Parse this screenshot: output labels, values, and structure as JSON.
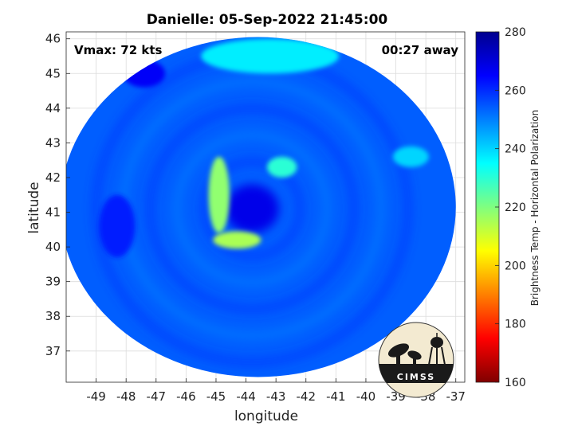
{
  "chart_data": {
    "type": "heatmap",
    "title": "Danielle: 05-Sep-2022 21:45:00",
    "xlabel": "longitude",
    "ylabel": "latitude",
    "xlim": [
      -50,
      -36.7
    ],
    "ylim": [
      36.1,
      46.2
    ],
    "x_ticks": [
      -49,
      -48,
      -47,
      -46,
      -45,
      -44,
      -43,
      -42,
      -41,
      -40,
      -39,
      -38,
      -37
    ],
    "x_tick_labels": [
      "-49",
      "-48",
      "-47",
      "-46",
      "-45",
      "-44",
      "-43",
      "-42",
      "-41",
      "-40",
      "-39",
      "-38",
      "-37"
    ],
    "y_ticks": [
      37,
      38,
      39,
      40,
      41,
      42,
      43,
      44,
      45,
      46
    ],
    "y_tick_labels": [
      "37",
      "38",
      "39",
      "40",
      "41",
      "42",
      "43",
      "44",
      "45",
      "46"
    ],
    "grid": true,
    "annotations": {
      "vmax": "Vmax: 72 kts",
      "away": "00:27 away"
    },
    "colorbar": {
      "label": "Brightness Temp - Horizontal Polarization",
      "range": [
        160,
        280
      ],
      "ticks": [
        160,
        180,
        200,
        220,
        240,
        260,
        280
      ],
      "tick_labels": [
        "160",
        "180",
        "200",
        "220",
        "240",
        "260",
        "280"
      ]
    },
    "swath": {
      "center_lon": -43.6,
      "center_lat": 41.15,
      "radius_lon": 6.6,
      "radius_lat": 4.9,
      "background_temp": 254
    },
    "features": [
      {
        "name": "eye",
        "lon": -43.8,
        "lat": 41.1,
        "rx": 0.9,
        "ry": 0.7,
        "temp": 268
      },
      {
        "name": "rainband-west",
        "lon": -44.9,
        "lat": 41.5,
        "rx": 0.35,
        "ry": 1.1,
        "temp": 218
      },
      {
        "name": "rainband-south",
        "lon": -44.3,
        "lat": 40.2,
        "rx": 0.8,
        "ry": 0.25,
        "temp": 215
      },
      {
        "name": "rainband-north",
        "lon": -42.8,
        "lat": 42.3,
        "rx": 0.5,
        "ry": 0.3,
        "temp": 230
      },
      {
        "name": "cloud-north",
        "lon": -43.2,
        "lat": 45.5,
        "rx": 2.3,
        "ry": 0.5,
        "temp": 237
      },
      {
        "name": "cloud-east",
        "lon": -38.5,
        "lat": 42.6,
        "rx": 0.6,
        "ry": 0.3,
        "temp": 240
      },
      {
        "name": "cold-patch-nw",
        "lon": -47.4,
        "lat": 45.0,
        "rx": 0.7,
        "ry": 0.4,
        "temp": 266
      },
      {
        "name": "cold-patch-w",
        "lon": -48.3,
        "lat": 40.6,
        "rx": 0.6,
        "ry": 0.9,
        "temp": 262
      }
    ]
  },
  "logo": {
    "text": "CIMSS"
  }
}
